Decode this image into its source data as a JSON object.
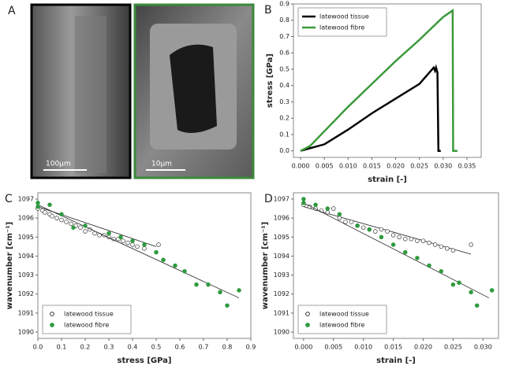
{
  "panel_a": {
    "label": "A",
    "scale_bars": [
      "100µm",
      "10µm"
    ]
  },
  "chart_data": [
    {
      "type": "line",
      "panel": "B",
      "xlabel": "strain [-]",
      "ylabel": "stress [GPa]",
      "xlim": [
        -0.0015,
        0.038
      ],
      "ylim": [
        -0.04,
        0.9
      ],
      "xticks": [
        {
          "value": 0,
          "label": "0.000"
        },
        {
          "value": 0.005,
          "label": "0.005"
        },
        {
          "value": 0.01,
          "label": "0.010"
        },
        {
          "value": 0.015,
          "label": "0.015"
        },
        {
          "value": 0.02,
          "label": "0.020"
        },
        {
          "value": 0.025,
          "label": "0.025"
        },
        {
          "value": 0.03,
          "label": "0.030"
        },
        {
          "value": 0.035,
          "label": "0.035"
        }
      ],
      "yticks": [
        {
          "value": 0,
          "label": "0.0"
        },
        0.1,
        0.2,
        0.3,
        0.4,
        0.5,
        0.6,
        0.7,
        0.8,
        0.9
      ],
      "legend": "upper left",
      "series": [
        {
          "name": "latewood tissue",
          "color": "#000000",
          "x": [
            0,
            0.005,
            0.01,
            0.015,
            0.02,
            0.025,
            0.028,
            0.0283,
            0.0285,
            0.0288,
            0.029,
            0.0295
          ],
          "values": [
            0,
            0.04,
            0.13,
            0.23,
            0.32,
            0.41,
            0.51,
            0.49,
            0.51,
            0.48,
            0,
            0
          ]
        },
        {
          "name": "latewood fibre",
          "color": "#3a9a3a",
          "x": [
            0,
            0.002,
            0.005,
            0.01,
            0.015,
            0.02,
            0.025,
            0.03,
            0.032,
            0.0321,
            0.033
          ],
          "values": [
            0,
            0.03,
            0.12,
            0.27,
            0.41,
            0.55,
            0.68,
            0.82,
            0.86,
            0,
            0
          ]
        }
      ]
    },
    {
      "type": "scatter",
      "panel": "C",
      "xlabel": "stress [GPa]",
      "ylabel": "wavenumber [cm⁻¹]",
      "xlim": [
        0,
        0.9
      ],
      "ylim": [
        1089.67,
        1097.33
      ],
      "xticks": [
        {
          "value": 0,
          "label": "0.0"
        },
        0.1,
        0.2,
        0.3,
        0.4,
        0.5,
        0.6,
        0.7,
        0.8,
        0.9
      ],
      "yticks": [
        1090,
        1091,
        1092,
        1093,
        1094,
        1095,
        1096,
        1097
      ],
      "legend": "lower left",
      "series": [
        {
          "name": "latewood tissue",
          "color": "#000000",
          "marker": "open",
          "x": [
            0,
            0.02,
            0.03,
            0.05,
            0.06,
            0.08,
            0.1,
            0.12,
            0.14,
            0.16,
            0.18,
            0.2,
            0.22,
            0.24,
            0.26,
            0.28,
            0.3,
            0.32,
            0.34,
            0.36,
            0.38,
            0.4,
            0.42,
            0.45,
            0.51
          ],
          "values": [
            1096.5,
            1096.4,
            1096.3,
            1096.2,
            1096.1,
            1096.0,
            1095.9,
            1095.8,
            1095.7,
            1095.6,
            1095.5,
            1095.3,
            1095.4,
            1095.2,
            1095.1,
            1095.1,
            1095.0,
            1094.9,
            1094.9,
            1094.8,
            1094.7,
            1094.6,
            1094.5,
            1094.4,
            1094.6
          ],
          "fit": {
            "x": [
              0,
              0.5
            ],
            "values": [
              1096.6,
              1094.5
            ]
          }
        },
        {
          "name": "latewood fibre",
          "color": "#2e9a3e",
          "marker": "filled",
          "x": [
            0,
            0,
            0.05,
            0.1,
            0.15,
            0.2,
            0.3,
            0.35,
            0.4,
            0.45,
            0.5,
            0.53,
            0.58,
            0.62,
            0.67,
            0.72,
            0.77,
            0.8,
            0.85
          ],
          "values": [
            1096.8,
            1096.6,
            1096.7,
            1096.2,
            1095.5,
            1095.6,
            1095.2,
            1095.0,
            1094.8,
            1094.6,
            1094.2,
            1093.8,
            1093.5,
            1093.2,
            1092.5,
            1092.5,
            1092.1,
            1091.4,
            1092.2
          ],
          "fit": {
            "x": [
              0,
              0.85
            ],
            "values": [
              1096.7,
              1091.8
            ]
          }
        }
      ]
    },
    {
      "type": "scatter",
      "panel": "D",
      "xlabel": "strain [-]",
      "ylabel": "wavenumber [cm⁻¹]",
      "xlim": [
        -0.0017,
        0.0326
      ],
      "ylim": [
        1089.67,
        1097.33
      ],
      "xticks": [
        {
          "value": 0,
          "label": "0.000"
        },
        {
          "value": 0.005,
          "label": "0.005"
        },
        {
          "value": 0.01,
          "label": "0.010"
        },
        {
          "value": 0.015,
          "label": "0.015"
        },
        {
          "value": 0.02,
          "label": "0.020"
        },
        {
          "value": 0.025,
          "label": "0.025"
        },
        {
          "value": 0.03,
          "label": "0.030"
        }
      ],
      "yticks": [
        1090,
        1091,
        1092,
        1093,
        1094,
        1095,
        1096,
        1097
      ],
      "legend": "lower left",
      "series": [
        {
          "name": "latewood tissue",
          "color": "#000000",
          "marker": "open",
          "x": [
            0,
            0.001,
            0.002,
            0.003,
            0.004,
            0.005,
            0.006,
            0.007,
            0.008,
            0.009,
            0.01,
            0.011,
            0.012,
            0.013,
            0.014,
            0.015,
            0.016,
            0.017,
            0.018,
            0.019,
            0.02,
            0.021,
            0.022,
            0.023,
            0.024,
            0.025,
            0.028
          ],
          "values": [
            1096.7,
            1096.6,
            1096.5,
            1096.4,
            1096.3,
            1096.5,
            1096.0,
            1095.8,
            1095.8,
            1095.6,
            1095.5,
            1095.4,
            1095.3,
            1095.4,
            1095.3,
            1095.1,
            1095.0,
            1094.9,
            1094.9,
            1094.8,
            1094.8,
            1094.7,
            1094.6,
            1094.5,
            1094.4,
            1094.3,
            1094.6
          ],
          "fit": {
            "x": [
              0,
              0.028
            ],
            "values": [
              1096.6,
              1094.1
            ]
          }
        },
        {
          "name": "latewood fibre",
          "color": "#2e9a3e",
          "marker": "filled",
          "x": [
            0,
            0,
            0.002,
            0.004,
            0.006,
            0.009,
            0.011,
            0.013,
            0.015,
            0.017,
            0.019,
            0.021,
            0.023,
            0.025,
            0.026,
            0.028,
            0.029,
            0.0315
          ],
          "values": [
            1097.0,
            1096.8,
            1096.7,
            1096.5,
            1096.2,
            1095.6,
            1095.4,
            1095.0,
            1094.6,
            1094.2,
            1093.9,
            1093.5,
            1093.2,
            1092.5,
            1092.6,
            1092.1,
            1091.4,
            1092.2
          ],
          "fit": {
            "x": [
              0,
              0.031
            ],
            "values": [
              1096.8,
              1091.8
            ]
          }
        }
      ]
    }
  ]
}
